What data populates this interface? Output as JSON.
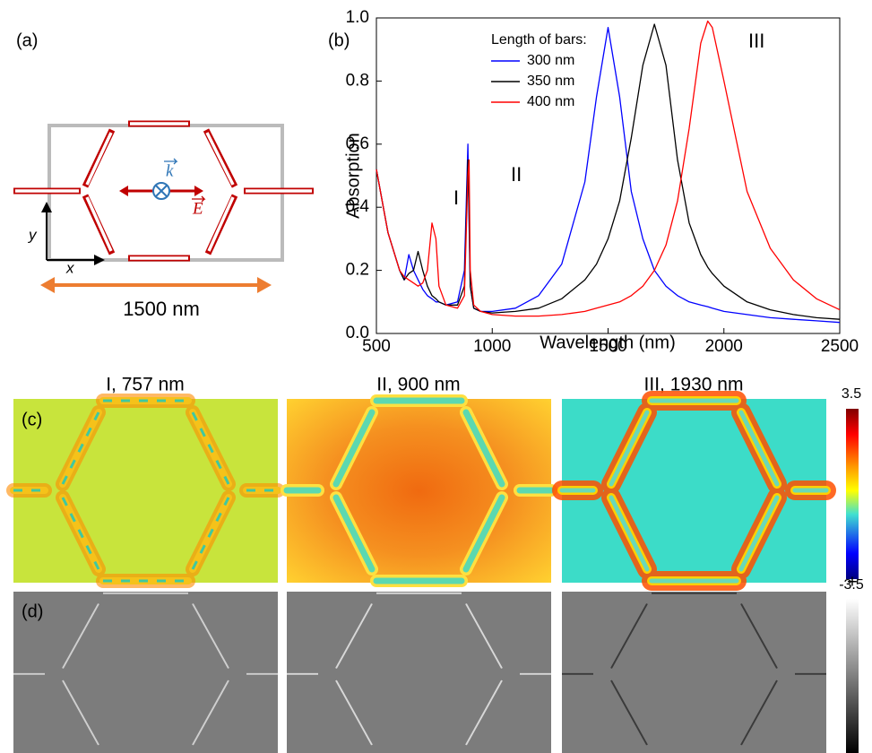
{
  "panel_labels": [
    "(a)",
    "(b)",
    "(c)",
    "(d)"
  ],
  "schematic": {
    "k": "k",
    "E": "E",
    "y": "y",
    "x": "x",
    "period": "1500 nm"
  },
  "chart_data": {
    "type": "line",
    "xlabel": "Wavelength (nm)",
    "ylabel": "Absorption",
    "legend_title": "Length of bars:",
    "annotations": [
      "I",
      "II",
      "III"
    ],
    "xlim": [
      500,
      2500
    ],
    "ylim": [
      0,
      1
    ],
    "xticks": [
      500,
      1000,
      1500,
      2000,
      2500
    ],
    "yticks": [
      {
        "value": 0,
        "label": "0.0"
      },
      0.2,
      0.4,
      0.6,
      0.8,
      {
        "value": 1,
        "label": "1.0"
      }
    ],
    "x": [
      500,
      550,
      600,
      620,
      640,
      660,
      680,
      700,
      720,
      740,
      757,
      770,
      800,
      850,
      880,
      895,
      900,
      905,
      920,
      950,
      1000,
      1100,
      1200,
      1300,
      1400,
      1450,
      1500,
      1550,
      1600,
      1650,
      1700,
      1750,
      1800,
      1850,
      1900,
      1930,
      1950,
      2000,
      2100,
      2200,
      2300,
      2400,
      2500
    ],
    "series": [
      {
        "name": "300 nm",
        "color": "#0000ff",
        "values": [
          0.52,
          0.32,
          0.2,
          0.17,
          0.25,
          0.2,
          0.17,
          0.14,
          0.12,
          0.11,
          0.1,
          0.1,
          0.09,
          0.1,
          0.2,
          0.6,
          0.35,
          0.15,
          0.08,
          0.07,
          0.07,
          0.08,
          0.12,
          0.22,
          0.48,
          0.75,
          0.97,
          0.75,
          0.45,
          0.3,
          0.2,
          0.15,
          0.12,
          0.1,
          0.09,
          0.085,
          0.08,
          0.07,
          0.06,
          0.05,
          0.045,
          0.04,
          0.035
        ]
      },
      {
        "name": "350 nm",
        "color": "#000000",
        "values": [
          0.52,
          0.32,
          0.2,
          0.17,
          0.19,
          0.2,
          0.26,
          0.2,
          0.15,
          0.12,
          0.11,
          0.1,
          0.09,
          0.09,
          0.15,
          0.55,
          0.4,
          0.15,
          0.08,
          0.07,
          0.065,
          0.07,
          0.08,
          0.11,
          0.17,
          0.22,
          0.3,
          0.42,
          0.62,
          0.85,
          0.98,
          0.85,
          0.55,
          0.35,
          0.25,
          0.21,
          0.19,
          0.15,
          0.1,
          0.075,
          0.06,
          0.05,
          0.045
        ]
      },
      {
        "name": "400 nm",
        "color": "#ff0000",
        "values": [
          0.52,
          0.32,
          0.2,
          0.18,
          0.17,
          0.16,
          0.15,
          0.16,
          0.2,
          0.35,
          0.3,
          0.15,
          0.09,
          0.08,
          0.12,
          0.5,
          0.55,
          0.2,
          0.09,
          0.07,
          0.06,
          0.055,
          0.055,
          0.06,
          0.07,
          0.08,
          0.09,
          0.1,
          0.12,
          0.15,
          0.2,
          0.28,
          0.42,
          0.65,
          0.92,
          0.99,
          0.97,
          0.8,
          0.45,
          0.27,
          0.17,
          0.11,
          0.075
        ]
      }
    ]
  },
  "field_maps": {
    "titles": [
      "I, 757 nm",
      "II, 900 nm",
      "III, 1930 nm"
    ],
    "colorbar_max": "3.5",
    "colorbar_min": "-3.5",
    "charge_sign": "+"
  }
}
